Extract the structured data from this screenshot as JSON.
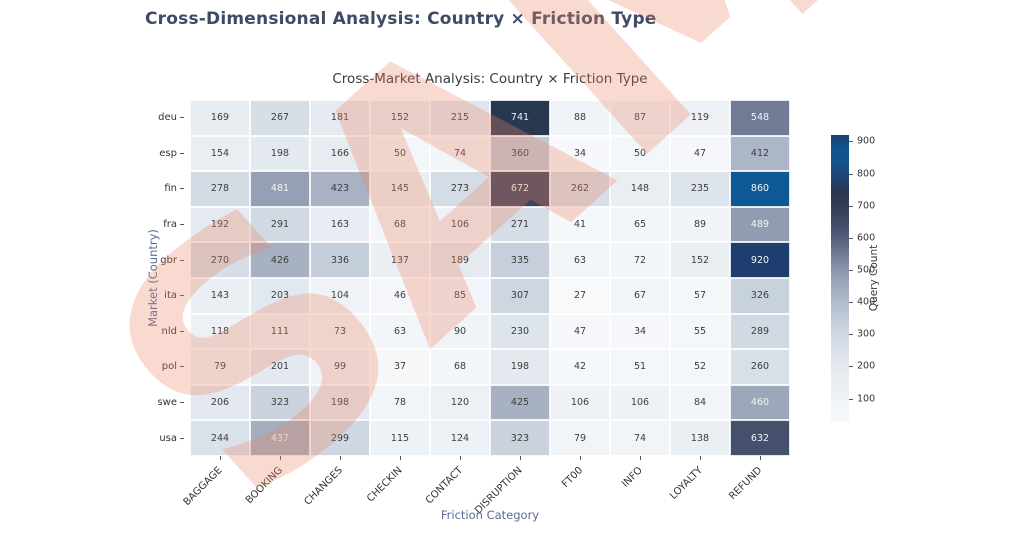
{
  "page": {
    "title": "Cross-Dimensional Analysis: Country × Friction Type"
  },
  "watermark": {
    "text": "SAMPLE",
    "color": "rgba(236,132,98,0.30)"
  },
  "chart_data": {
    "type": "heatmap",
    "title": "Cross-Market Analysis: Country × Friction Type",
    "xlabel": "Friction Category",
    "ylabel": "Market (Country)",
    "colorbar_label": "Query Count",
    "categories_x": [
      "BAGGAGE",
      "BOOKING",
      "CHANGES",
      "CHECKIN",
      "CONTACT",
      "DISRUPTION",
      "FT00",
      "INFO",
      "LOYALTY",
      "REFUND"
    ],
    "categories_y": [
      "deu",
      "esp",
      "fin",
      "fra",
      "gbr",
      "ita",
      "nld",
      "pol",
      "swe",
      "usa"
    ],
    "values": [
      [
        169,
        267,
        181,
        152,
        215,
        741,
        88,
        87,
        119,
        548
      ],
      [
        154,
        198,
        166,
        50,
        74,
        360,
        34,
        50,
        47,
        412
      ],
      [
        278,
        481,
        423,
        145,
        273,
        672,
        262,
        148,
        235,
        860
      ],
      [
        192,
        291,
        163,
        68,
        106,
        271,
        41,
        65,
        89,
        489
      ],
      [
        270,
        426,
        336,
        137,
        189,
        335,
        63,
        72,
        152,
        920
      ],
      [
        143,
        203,
        104,
        46,
        85,
        307,
        27,
        67,
        57,
        326
      ],
      [
        118,
        111,
        73,
        63,
        90,
        230,
        47,
        34,
        55,
        289
      ],
      [
        79,
        201,
        99,
        37,
        68,
        198,
        42,
        51,
        52,
        260
      ],
      [
        206,
        323,
        198,
        78,
        120,
        425,
        106,
        106,
        84,
        460
      ],
      [
        244,
        437,
        299,
        115,
        124,
        323,
        79,
        74,
        138,
        632
      ]
    ],
    "vmin": 27,
    "vmax": 920,
    "colorbar_ticks": [
      100,
      200,
      300,
      400,
      500,
      600,
      700,
      800,
      900
    ],
    "colormap_stops": [
      [
        27,
        "#f7f9fb"
      ],
      [
        100,
        "#eff3f7"
      ],
      [
        200,
        "#e3e9ef"
      ],
      [
        300,
        "#cfd8e2"
      ],
      [
        360,
        "#bfc9d6"
      ],
      [
        425,
        "#a7b1c2"
      ],
      [
        480,
        "#96a1b4"
      ],
      [
        550,
        "#6f7b94"
      ],
      [
        620,
        "#485370"
      ],
      [
        700,
        "#323c52"
      ],
      [
        755,
        "#263650"
      ],
      [
        800,
        "#1b4b7c"
      ],
      [
        865,
        "#0d5a97"
      ],
      [
        920,
        "#1d3e6e"
      ]
    ],
    "text_color_threshold": 430,
    "cell_text_dark": "#3d3d3d",
    "cell_text_light": "#f2f4f7",
    "grid": false,
    "legend_position": "right-colorbar"
  }
}
